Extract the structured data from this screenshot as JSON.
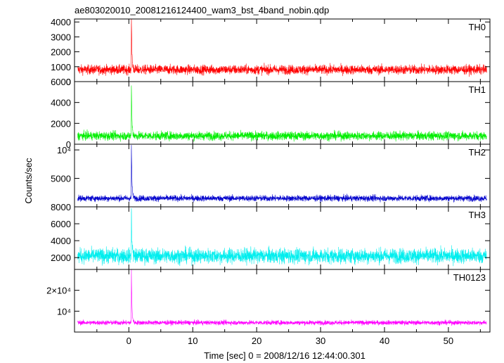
{
  "chart_data": {
    "type": "line",
    "title": "ae803020010_20081216124400_wam3_bst_4band_nobin.qdp",
    "xlabel": "Time [sec] 0 = 2008/12/16 12:44:00.301",
    "ylabel": "Counts/sec",
    "xlim": [
      -8.5,
      56.5
    ],
    "x_ticks": [
      0,
      10,
      20,
      30,
      40,
      50
    ],
    "x_tick_labels": [
      "0",
      "10",
      "20",
      "30",
      "40",
      "50"
    ],
    "grid": false,
    "legend": "none",
    "panels": [
      {
        "name": "TH0",
        "color": "#ff0000",
        "ylim": [
          0,
          4200
        ],
        "ticks": [
          0,
          1000,
          2000,
          3000,
          4000
        ],
        "tick_labels": [
          "0",
          "1000",
          "2000",
          "3000",
          "4000"
        ],
        "baseline": 800,
        "noise": 160,
        "peak_time": 0.4,
        "peak_value": 4200,
        "series": [
          {
            "x": -8,
            "y": 780
          },
          {
            "x": -4,
            "y": 810
          },
          {
            "x": 0,
            "y": 900
          },
          {
            "x": 0.4,
            "y": 4200
          },
          {
            "x": 1,
            "y": 1100
          },
          {
            "x": 5,
            "y": 820
          },
          {
            "x": 10,
            "y": 800
          },
          {
            "x": 20,
            "y": 800
          },
          {
            "x": 30,
            "y": 810
          },
          {
            "x": 40,
            "y": 800
          },
          {
            "x": 50,
            "y": 790
          },
          {
            "x": 56,
            "y": 800
          }
        ]
      },
      {
        "name": "TH1",
        "color": "#00ee00",
        "ylim": [
          0,
          6000
        ],
        "ticks": [
          0,
          2000,
          4000,
          6000
        ],
        "tick_labels": [
          "0",
          "2000",
          "4000",
          "6000"
        ],
        "baseline": 800,
        "noise": 210,
        "peak_time": 0.4,
        "peak_value": 5800,
        "series": [
          {
            "x": -8,
            "y": 790
          },
          {
            "x": -4,
            "y": 800
          },
          {
            "x": 0,
            "y": 900
          },
          {
            "x": 0.4,
            "y": 5800
          },
          {
            "x": 1,
            "y": 1200
          },
          {
            "x": 5,
            "y": 820
          },
          {
            "x": 10,
            "y": 800
          },
          {
            "x": 20,
            "y": 800
          },
          {
            "x": 30,
            "y": 800
          },
          {
            "x": 40,
            "y": 800
          },
          {
            "x": 50,
            "y": 790
          },
          {
            "x": 56,
            "y": 800
          }
        ]
      },
      {
        "name": "TH2",
        "color": "#0000cc",
        "ylim": [
          0,
          11000
        ],
        "ticks": [
          5000,
          10000
        ],
        "tick_labels": [
          "5000",
          "10⁴"
        ],
        "baseline": 1500,
        "noise": 270,
        "peak_time": 0.4,
        "peak_value": 11000,
        "series": [
          {
            "x": -8,
            "y": 1500
          },
          {
            "x": -4,
            "y": 1500
          },
          {
            "x": 0,
            "y": 1700
          },
          {
            "x": 0.4,
            "y": 11000
          },
          {
            "x": 1,
            "y": 2200
          },
          {
            "x": 5,
            "y": 1550
          },
          {
            "x": 10,
            "y": 1500
          },
          {
            "x": 20,
            "y": 1500
          },
          {
            "x": 30,
            "y": 1500
          },
          {
            "x": 40,
            "y": 1500
          },
          {
            "x": 50,
            "y": 1500
          },
          {
            "x": 56,
            "y": 1500
          }
        ]
      },
      {
        "name": "TH3",
        "color": "#00eeee",
        "ylim": [
          600,
          8000
        ],
        "ticks": [
          2000,
          4000,
          6000,
          8000
        ],
        "tick_labels": [
          "2000",
          "4000",
          "6000",
          "8000"
        ],
        "baseline": 2200,
        "noise": 450,
        "peak_time": 0.4,
        "peak_value": 8000,
        "series": [
          {
            "x": -8,
            "y": 2150
          },
          {
            "x": -4,
            "y": 2200
          },
          {
            "x": 0,
            "y": 2400
          },
          {
            "x": 0.4,
            "y": 8000
          },
          {
            "x": 1,
            "y": 3000
          },
          {
            "x": 5,
            "y": 2250
          },
          {
            "x": 10,
            "y": 2200
          },
          {
            "x": 20,
            "y": 2250
          },
          {
            "x": 30,
            "y": 2200
          },
          {
            "x": 40,
            "y": 2200
          },
          {
            "x": 50,
            "y": 2150
          },
          {
            "x": 56,
            "y": 2150
          }
        ]
      },
      {
        "name": "TH0123",
        "color": "#ff00ff",
        "ylim": [
          0,
          30000
        ],
        "ticks": [
          10000,
          20000
        ],
        "tick_labels": [
          "10⁴",
          "2×10⁴"
        ],
        "baseline": 4500,
        "noise": 550,
        "peak_time": 0.4,
        "peak_value": 29000,
        "series": [
          {
            "x": -8,
            "y": 4500
          },
          {
            "x": -4,
            "y": 4500
          },
          {
            "x": 0,
            "y": 5000
          },
          {
            "x": 0.4,
            "y": 29000
          },
          {
            "x": 1,
            "y": 6500
          },
          {
            "x": 5,
            "y": 4600
          },
          {
            "x": 10,
            "y": 4500
          },
          {
            "x": 20,
            "y": 4500
          },
          {
            "x": 30,
            "y": 4500
          },
          {
            "x": 40,
            "y": 4500
          },
          {
            "x": 50,
            "y": 4500
          },
          {
            "x": 56,
            "y": 4500
          }
        ]
      }
    ]
  }
}
